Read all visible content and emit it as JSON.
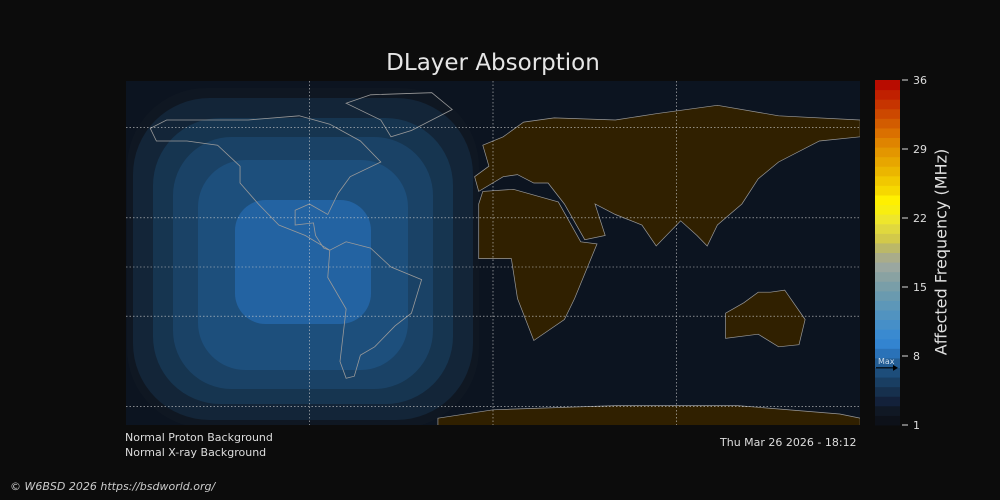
{
  "title": "DLayer Absorption",
  "colorbar": {
    "label": "Affected Frequency (MHz)",
    "ticks": [
      1,
      8,
      15,
      22,
      29,
      36
    ],
    "range": [
      1,
      36
    ],
    "max_marker_label": "Max",
    "max_value": 6.8,
    "colors": [
      "#0d1119",
      "#101824",
      "#13213a",
      "#16304d",
      "#193e62",
      "#1d4d7a",
      "#235d94",
      "#2a72b8",
      "#3384d0",
      "#3a8ad0",
      "#468fc8",
      "#5193c0",
      "#5d97b8",
      "#6a9aaf",
      "#799ea8",
      "#89a2a2",
      "#9aa7a0",
      "#a9ac8a",
      "#bbb868",
      "#d2c94a",
      "#e0d83e",
      "#eee62c",
      "#f8ee10",
      "#fff000",
      "#f6d800",
      "#f1c800",
      "#ebb600",
      "#e7a600",
      "#e39600",
      "#df8400",
      "#da7000",
      "#d25c00",
      "#cc4800",
      "#c63400",
      "#c02000",
      "#b80c00"
    ]
  },
  "map": {
    "ocean": "#0c1420",
    "land": "#302000",
    "coast": "#9a9a9a",
    "grid": "#cccccc",
    "contour_colors": [
      "#0f1722",
      "#132538",
      "#163550",
      "#1a4266",
      "#1d4f7c",
      "#2363a2"
    ]
  },
  "status": {
    "proton": "Normal Proton Background",
    "xray": "Normal X-ray Background",
    "datetime": "Thu Mar 26 2026 - 18:12"
  },
  "copyright": "© W6BSD 2026 https://bsdworld.org/"
}
